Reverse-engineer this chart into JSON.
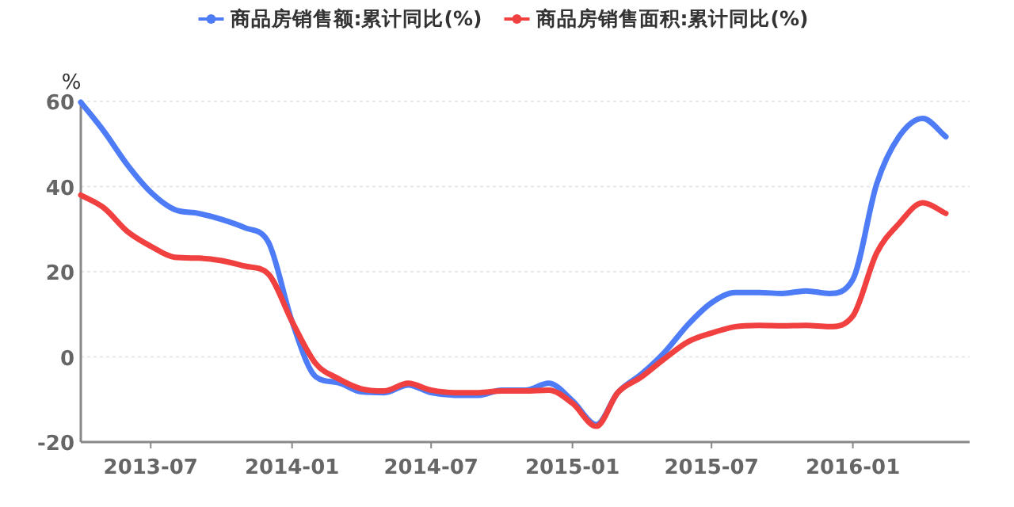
{
  "chart_data": {
    "type": "line",
    "ylabel": "%",
    "legend": "top",
    "grid": "y",
    "line_style": "solid",
    "marker": "none",
    "x": [
      "2013-04",
      "2013-05",
      "2013-06",
      "2013-07",
      "2013-08",
      "2013-09",
      "2013-10",
      "2013-11",
      "2013-12",
      "2014-01",
      "2014-02",
      "2014-03",
      "2014-04",
      "2014-05",
      "2014-06",
      "2014-07",
      "2014-08",
      "2014-09",
      "2014-10",
      "2014-11",
      "2014-12",
      "2015-01",
      "2015-02",
      "2015-03",
      "2015-04",
      "2015-05",
      "2015-06",
      "2015-07",
      "2015-08",
      "2015-09",
      "2015-10",
      "2015-11",
      "2015-12",
      "2016-01",
      "2016-02",
      "2016-03",
      "2016-04",
      "2016-05"
    ],
    "xlim": [
      "2013-04",
      "2016-06"
    ],
    "xticks": [
      "2013-07",
      "2014-01",
      "2014-07",
      "2015-01",
      "2015-07",
      "2016-01"
    ],
    "ylim": [
      -20,
      60
    ],
    "yticks": [
      -20,
      0,
      20,
      40,
      60
    ],
    "series": [
      {
        "name": "商品房销售额:累计同比(%)",
        "color": "#4e7cf6",
        "values": [
          59.8,
          53,
          45,
          38.7,
          34.6,
          33.7,
          32.3,
          30.3,
          27,
          8.3,
          -4.7,
          -6,
          -8.2,
          -8.4,
          -6.6,
          -8.4,
          -9,
          -9,
          -7.8,
          -7.8,
          -6.2,
          -10.3,
          -15.9,
          -8.4,
          -4,
          1.1,
          7.7,
          12.7,
          15.1,
          15.1,
          14.9,
          15.5,
          14.9,
          18.2,
          40.6,
          51.7,
          56,
          51.7
        ]
      },
      {
        "name": "商品房销售面积:累计同比(%)",
        "color": "#f0403f",
        "values": [
          38,
          35,
          29.4,
          26,
          23.4,
          23.2,
          22.6,
          21.3,
          19.5,
          8.3,
          -1.6,
          -5,
          -7.5,
          -8,
          -6.2,
          -7.8,
          -8.4,
          -8.4,
          -8,
          -8,
          -7.8,
          -10.9,
          -16.3,
          -8.4,
          -4.7,
          -0.4,
          3.6,
          5.6,
          7.1,
          7.4,
          7.3,
          7.4,
          7.1,
          9.6,
          24.4,
          31.3,
          36.2,
          33.7
        ]
      }
    ]
  }
}
